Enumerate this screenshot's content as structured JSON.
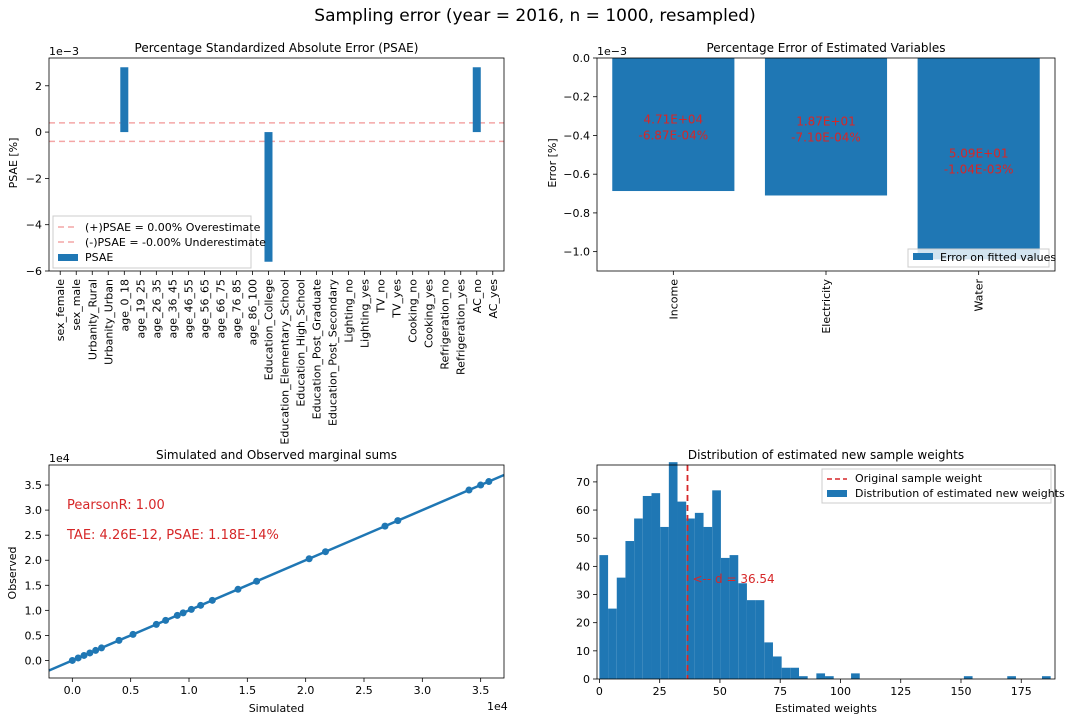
{
  "suptitle": "Sampling error (year = 2016, n = 1000, resampled)",
  "colors": {
    "bar": "#1f77b4",
    "line": "#1f77b4",
    "red": "#d62728",
    "pinkline": "#f4a6a6"
  },
  "chart_data": [
    {
      "type": "bar",
      "title": "Percentage Standardized Absolute Error (PSAE)",
      "xlabel": "",
      "ylabel": "PSAE [%]",
      "exponent_label": "1e−3",
      "ylim": [
        -6,
        3.2
      ],
      "yticks": [
        -6,
        -4,
        -2,
        0,
        2
      ],
      "categories": [
        "sex_female",
        "sex_male",
        "Urbanity_Rural",
        "Urbanity_Urban",
        "age_0_18",
        "age_19_25",
        "age_26_35",
        "age_36_45",
        "age_46_55",
        "age_56_65",
        "age_66_75",
        "age_76_85",
        "age_86_100",
        "Education_College",
        "Education_Elementary_School",
        "Education_High_School",
        "Education_Post_Graduate",
        "Education_Post_Secondary",
        "Lighting_no",
        "Lighting_yes",
        "TV_no",
        "TV_yes",
        "Cooking_no",
        "Cooking_yes",
        "Refrigeration_no",
        "Refrigeration_yes",
        "AC_no",
        "AC_yes"
      ],
      "values": [
        0,
        0,
        0,
        0,
        2.8,
        0,
        0,
        0,
        0,
        0,
        0,
        0,
        0,
        -5.6,
        0,
        0,
        0,
        0,
        0,
        0,
        0,
        0,
        0,
        0,
        0,
        0,
        2.8,
        0
      ],
      "hlines": [
        0.4,
        -0.4
      ],
      "legend": [
        "(+)PSAE = 0.00% Overestimate",
        "(-)PSAE = -0.00% Underestimate",
        "PSAE"
      ],
      "legend_position": "lower-left",
      "grid": false
    },
    {
      "type": "bar",
      "title": "Percentage Error of Estimated Variables",
      "xlabel": "",
      "ylabel": "Error [%]",
      "exponent_label": "1e−3",
      "ylim": [
        -1.1,
        0.0
      ],
      "yticks": [
        -1.0,
        -0.8,
        -0.6,
        -0.4,
        -0.2,
        0.0
      ],
      "categories": [
        "Income",
        "Electricity",
        "Water"
      ],
      "values": [
        -0.687,
        -0.71,
        -1.04
      ],
      "annotations": [
        [
          "4.71E+04",
          "-6.87E-04%"
        ],
        [
          "1.87E+01",
          "-7.10E-04%"
        ],
        [
          "5.09E+01",
          "-1.04E-03%"
        ]
      ],
      "legend": [
        "Error on fitted values"
      ],
      "legend_position": "lower-right",
      "grid": false
    },
    {
      "type": "scatter",
      "title": "Simulated and Observed marginal sums",
      "xlabel": "Simulated",
      "ylabel": "Observed",
      "x_exponent_label": "1e4",
      "y_exponent_label": "1e4",
      "xlim": [
        -0.2,
        3.7
      ],
      "ylim": [
        -0.35,
        3.9
      ],
      "xticks": [
        0.0,
        0.5,
        1.0,
        1.5,
        2.0,
        2.5,
        3.0,
        3.5
      ],
      "yticks": [
        0.0,
        0.5,
        1.0,
        1.5,
        2.0,
        2.5,
        3.0,
        3.5
      ],
      "x": [
        0.0,
        0.05,
        0.1,
        0.15,
        0.2,
        0.25,
        0.4,
        0.52,
        0.72,
        0.8,
        0.9,
        0.95,
        1.02,
        1.1,
        1.2,
        1.42,
        1.58,
        2.03,
        2.17,
        2.68,
        2.79,
        3.4,
        3.5,
        3.57
      ],
      "y": [
        0.0,
        0.05,
        0.1,
        0.15,
        0.2,
        0.25,
        0.4,
        0.52,
        0.72,
        0.8,
        0.9,
        0.95,
        1.02,
        1.1,
        1.2,
        1.42,
        1.58,
        2.03,
        2.17,
        2.68,
        2.79,
        3.4,
        3.5,
        3.57
      ],
      "annotations": [
        "PearsonR: 1.00",
        "TAE: 4.26E-12, PSAE: 1.18E-14%"
      ],
      "grid": false
    },
    {
      "type": "bar",
      "subtype": "histogram",
      "title": "Distribution of estimated new sample weights",
      "xlabel": "Estimated weights",
      "ylabel": "",
      "xlim": [
        -1,
        189
      ],
      "ylim": [
        0,
        76
      ],
      "xticks": [
        0,
        25,
        50,
        75,
        100,
        125,
        150,
        175
      ],
      "yticks": [
        0,
        10,
        20,
        30,
        40,
        50,
        60,
        70
      ],
      "bin_start": 0,
      "bin_width": 3.6,
      "values": [
        44,
        25,
        36,
        49,
        57,
        65,
        66,
        54,
        77,
        63,
        57,
        59,
        54,
        67,
        43,
        44,
        34,
        28,
        28,
        13,
        8,
        4,
        4,
        1,
        0,
        2,
        1,
        0,
        0,
        2,
        0,
        0,
        0,
        0,
        0,
        0,
        0,
        0,
        0,
        0,
        0,
        0,
        1,
        0,
        0,
        0,
        0,
        1,
        0,
        0,
        0,
        1
      ],
      "vline": 36.54,
      "annotation": "<-- d = 36.54",
      "legend": [
        "Original sample weight",
        "Distribution of estimated new weights"
      ],
      "legend_position": "top-right",
      "grid": false
    }
  ]
}
